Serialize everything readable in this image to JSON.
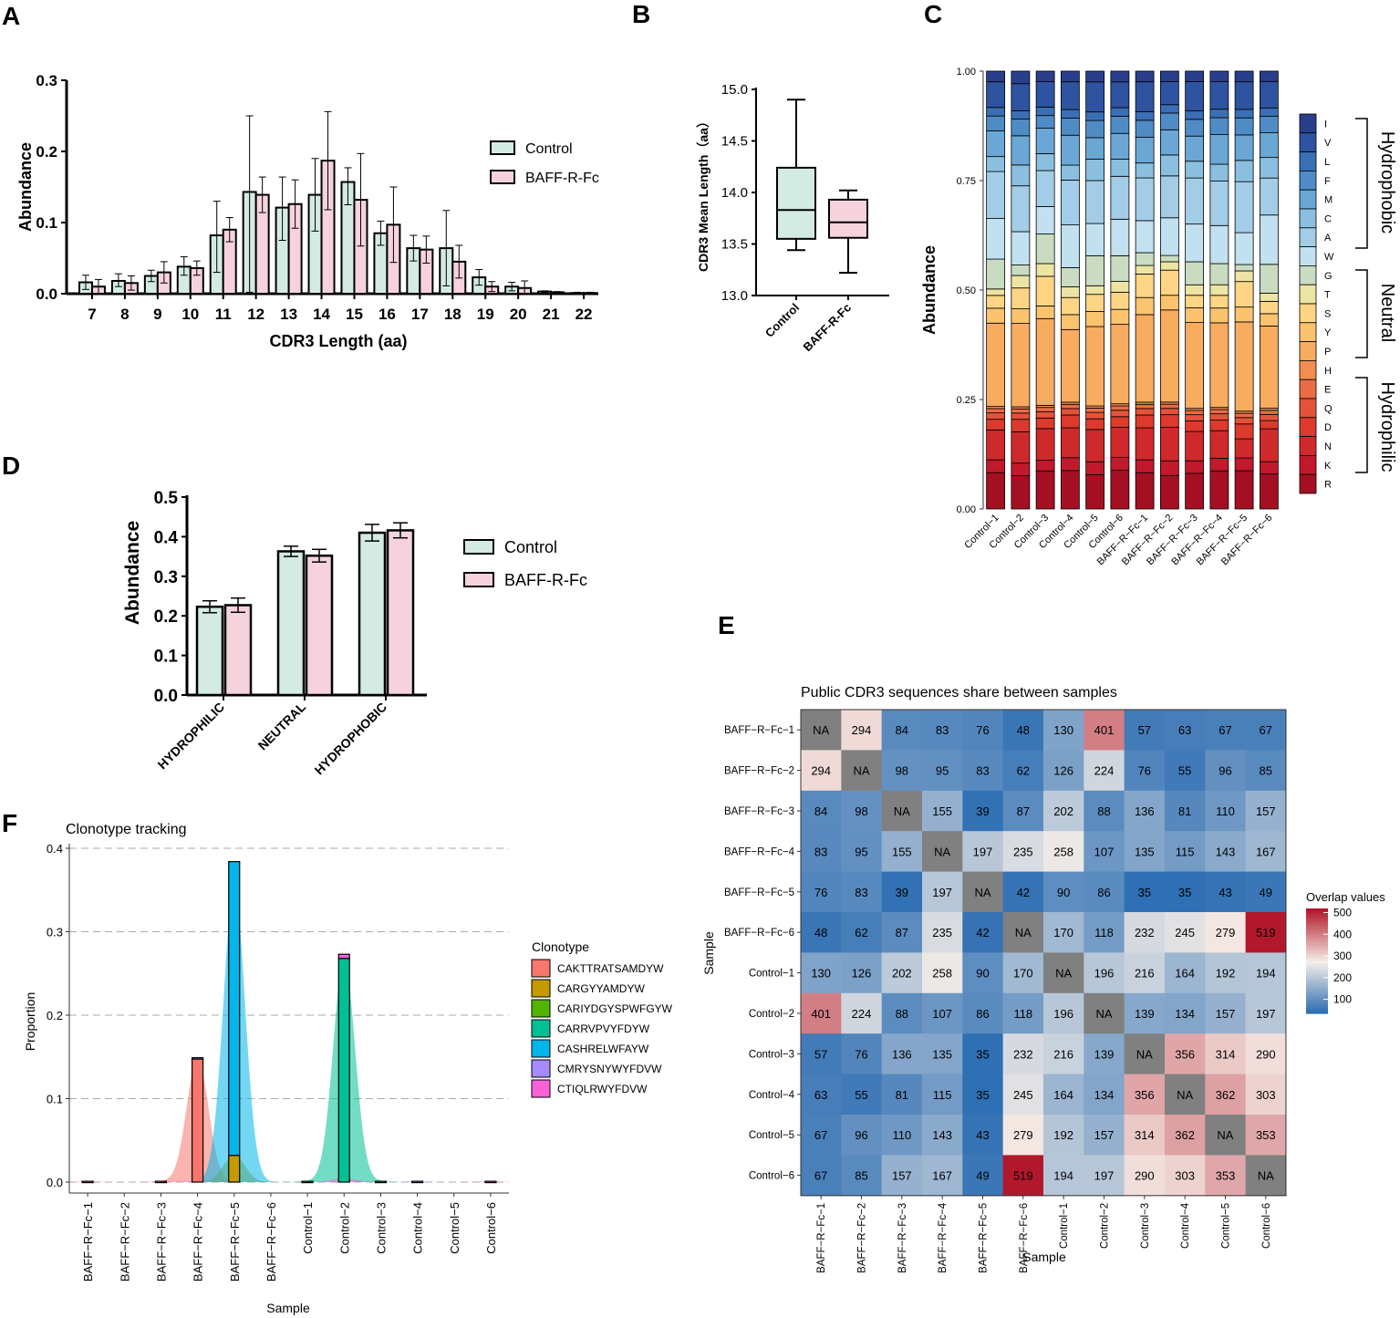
{
  "panel_labels": {
    "a": "A",
    "b": "B",
    "c": "C",
    "d": "D",
    "e": "E",
    "f": "F"
  },
  "colors": {
    "control": "#d3ebe3",
    "baff": "#f6d3dc",
    "heat_low": "#2f6fb3",
    "heat_mid": "#f6efe9",
    "heat_high": "#b2182b",
    "na": "#808080"
  },
  "chart_data": [
    {
      "id": "A",
      "type": "bar",
      "xlabel": "CDR3 Length (aa)",
      "ylabel": "Abundance",
      "ylim": [
        0,
        0.3
      ],
      "yticks": [
        "0.0",
        "0.1",
        "0.2",
        "0.3"
      ],
      "categories": [
        "7",
        "8",
        "9",
        "10",
        "11",
        "12",
        "13",
        "14",
        "15",
        "16",
        "17",
        "18",
        "19",
        "20",
        "21",
        "22"
      ],
      "series": [
        {
          "name": "Control",
          "values": [
            0.016,
            0.018,
            0.025,
            0.038,
            0.082,
            0.143,
            0.121,
            0.139,
            0.157,
            0.085,
            0.064,
            0.064,
            0.023,
            0.01,
            0.003,
            0.001
          ],
          "err_hi": [
            0.026,
            0.028,
            0.033,
            0.052,
            0.13,
            0.25,
            0.164,
            0.19,
            0.177,
            0.102,
            0.082,
            0.117,
            0.034,
            0.016,
            0.004,
            0.002
          ],
          "err_lo": [
            0.006,
            0.01,
            0.017,
            0.026,
            0.03,
            0.002,
            0.075,
            0.088,
            0.125,
            0.068,
            0.046,
            0.011,
            0.012,
            0.004,
            0.002,
            0.0
          ]
        },
        {
          "name": "BAFF-R-Fc",
          "values": [
            0.01,
            0.015,
            0.03,
            0.036,
            0.09,
            0.139,
            0.126,
            0.187,
            0.132,
            0.097,
            0.062,
            0.045,
            0.01,
            0.008,
            0.002,
            0.001
          ],
          "err_hi": [
            0.02,
            0.025,
            0.045,
            0.046,
            0.107,
            0.164,
            0.16,
            0.256,
            0.197,
            0.15,
            0.081,
            0.068,
            0.017,
            0.018,
            0.003,
            0.002
          ],
          "err_lo": [
            0.0,
            0.005,
            0.015,
            0.026,
            0.073,
            0.114,
            0.092,
            0.118,
            0.067,
            0.044,
            0.043,
            0.022,
            0.003,
            0.0,
            0.001,
            0.0
          ]
        }
      ]
    },
    {
      "id": "B",
      "type": "box",
      "ylabel": "CDR3 Mean Length（aa）",
      "ylim": [
        13.0,
        15.0
      ],
      "yticks": [
        "13.0",
        "13.5",
        "14.0",
        "14.5",
        "15.0"
      ],
      "categories": [
        "Control",
        "BAFF-R-Fc"
      ],
      "boxes": [
        {
          "min": 13.44,
          "q1": 13.55,
          "median": 13.83,
          "q3": 14.24,
          "max": 14.9
        },
        {
          "min": 13.22,
          "q1": 13.56,
          "median": 13.71,
          "q3": 13.93,
          "max": 14.02
        }
      ]
    },
    {
      "id": "C",
      "type": "stacked-bar",
      "ylabel": "Abundance",
      "ylim": [
        0,
        1
      ],
      "yticks": [
        "0.00",
        "0.25",
        "0.50",
        "0.75",
        "1.00"
      ],
      "categories": [
        "Control−1",
        "Control−2",
        "Control−3",
        "Control−4",
        "Control−5",
        "Control−6",
        "BAFF−R−Fc−1",
        "BAFF−R−Fc−2",
        "BAFF−R−Fc−3",
        "BAFF−R−Fc−4",
        "BAFF−R−Fc−5",
        "BAFF−R−Fc−6"
      ],
      "series": [
        {
          "name": "R",
          "color": "#a50f22",
          "values": [
            0.085,
            0.08,
            0.09,
            0.09,
            0.08,
            0.09,
            0.085,
            0.08,
            0.085,
            0.09,
            0.09,
            0.085
          ]
        },
        {
          "name": "K",
          "color": "#c2192c",
          "values": [
            0.03,
            0.03,
            0.025,
            0.03,
            0.03,
            0.03,
            0.03,
            0.035,
            0.03,
            0.03,
            0.03,
            0.03
          ]
        },
        {
          "name": "N",
          "color": "#cf2a2b",
          "values": [
            0.07,
            0.075,
            0.075,
            0.07,
            0.075,
            0.07,
            0.075,
            0.08,
            0.07,
            0.065,
            0.045,
            0.08
          ]
        },
        {
          "name": "D",
          "color": "#db3a2c",
          "values": [
            0.025,
            0.03,
            0.025,
            0.03,
            0.025,
            0.025,
            0.03,
            0.03,
            0.025,
            0.025,
            0.035,
            0.02
          ]
        },
        {
          "name": "Q",
          "color": "#e3533a",
          "values": [
            0.015,
            0.015,
            0.015,
            0.015,
            0.015,
            0.015,
            0.015,
            0.015,
            0.015,
            0.015,
            0.015,
            0.015
          ]
        },
        {
          "name": "E",
          "color": "#ea6c44",
          "values": [
            0.01,
            0.01,
            0.01,
            0.01,
            0.01,
            0.01,
            0.01,
            0.01,
            0.01,
            0.01,
            0.01,
            0.01
          ]
        },
        {
          "name": "H",
          "color": "#f28e52",
          "values": [
            0.005,
            0.005,
            0.005,
            0.005,
            0.005,
            0.005,
            0.005,
            0.005,
            0.005,
            0.005,
            0.005,
            0.005
          ]
        },
        {
          "name": "P",
          "color": "#f8ac5f",
          "values": [
            0.195,
            0.2,
            0.205,
            0.17,
            0.185,
            0.185,
            0.205,
            0.22,
            0.205,
            0.2,
            0.21,
            0.2
          ]
        },
        {
          "name": "Y",
          "color": "#fbc36e",
          "values": [
            0.035,
            0.035,
            0.03,
            0.035,
            0.035,
            0.035,
            0.04,
            0.035,
            0.035,
            0.035,
            0.035,
            0.03
          ]
        },
        {
          "name": "S",
          "color": "#fdd585",
          "values": [
            0.03,
            0.05,
            0.07,
            0.04,
            0.04,
            0.04,
            0.055,
            0.06,
            0.03,
            0.03,
            0.06,
            0.03
          ]
        },
        {
          "name": "T",
          "color": "#ece4a3",
          "values": [
            0.015,
            0.03,
            0.03,
            0.025,
            0.02,
            0.025,
            0.02,
            0.02,
            0.025,
            0.025,
            0.025,
            0.02
          ]
        },
        {
          "name": "G",
          "color": "#c9dcc2",
          "values": [
            0.07,
            0.025,
            0.07,
            0.045,
            0.07,
            0.06,
            0.03,
            0.015,
            0.055,
            0.05,
            0.015,
            0.07
          ]
        },
        {
          "name": "W",
          "color": "#c2e1f0",
          "values": [
            0.095,
            0.08,
            0.065,
            0.1,
            0.075,
            0.085,
            0.075,
            0.09,
            0.09,
            0.09,
            0.075,
            0.12
          ]
        },
        {
          "name": "A",
          "color": "#a3cde6",
          "values": [
            0.11,
            0.11,
            0.085,
            0.105,
            0.1,
            0.1,
            0.1,
            0.1,
            0.11,
            0.105,
            0.12,
            0.09
          ]
        },
        {
          "name": "C",
          "color": "#8bbfdf",
          "values": [
            0.035,
            0.05,
            0.04,
            0.035,
            0.05,
            0.04,
            0.035,
            0.05,
            0.04,
            0.04,
            0.05,
            0.05
          ]
        },
        {
          "name": "M",
          "color": "#6aa7d4",
          "values": [
            0.06,
            0.07,
            0.06,
            0.07,
            0.05,
            0.06,
            0.06,
            0.06,
            0.06,
            0.07,
            0.06,
            0.06
          ]
        },
        {
          "name": "F",
          "color": "#4f8cc5",
          "values": [
            0.035,
            0.04,
            0.03,
            0.04,
            0.04,
            0.04,
            0.04,
            0.04,
            0.04,
            0.04,
            0.04,
            0.04
          ]
        },
        {
          "name": "L",
          "color": "#3a6fb5",
          "values": [
            0.02,
            0.02,
            0.02,
            0.02,
            0.02,
            0.02,
            0.02,
            0.02,
            0.02,
            0.02,
            0.02,
            0.02
          ]
        },
        {
          "name": "V",
          "color": "#2e53a0",
          "values": [
            0.06,
            0.065,
            0.06,
            0.065,
            0.07,
            0.06,
            0.07,
            0.055,
            0.07,
            0.065,
            0.065,
            0.065
          ]
        },
        {
          "name": "I",
          "color": "#2a3f8c",
          "values": [
            0.025,
            0.03,
            0.025,
            0.025,
            0.025,
            0.025,
            0.025,
            0.025,
            0.025,
            0.025,
            0.025,
            0.025
          ]
        }
      ],
      "groups": [
        "Hydrophobic",
        "Neutral",
        "Hydrophilic"
      ]
    },
    {
      "id": "D",
      "type": "bar",
      "ylabel": "Abundance",
      "ylim": [
        0,
        0.5
      ],
      "yticks": [
        "0.0",
        "0.1",
        "0.2",
        "0.3",
        "0.4",
        "0.5"
      ],
      "categories": [
        "HYDROPHILIC",
        "NEUTRAL",
        "HYDROPHOBIC"
      ],
      "series": [
        {
          "name": "Control",
          "values": [
            0.223,
            0.363,
            0.41
          ],
          "err": [
            0.015,
            0.013,
            0.021
          ]
        },
        {
          "name": "BAFF-R-Fc",
          "values": [
            0.227,
            0.352,
            0.416
          ],
          "err": [
            0.018,
            0.016,
            0.019
          ]
        }
      ]
    },
    {
      "id": "E",
      "type": "heatmap",
      "title": "Public CDR3 sequences share between samples",
      "xlabel": "Sample",
      "ylabel": "Sample",
      "legend_title": "Overlap values",
      "legend_ticks": [
        "100",
        "200",
        "300",
        "400",
        "500"
      ],
      "value_range": [
        35,
        519
      ],
      "labels": [
        "BAFF−R−Fc−1",
        "BAFF−R−Fc−2",
        "BAFF−R−Fc−3",
        "BAFF−R−Fc−4",
        "BAFF−R−Fc−5",
        "BAFF−R−Fc−6",
        "Control−1",
        "Control−2",
        "Control−3",
        "Control−4",
        "Control−5",
        "Control−6"
      ],
      "matrix": [
        [
          "NA",
          294,
          84,
          83,
          76,
          48,
          130,
          401,
          57,
          63,
          67,
          67
        ],
        [
          294,
          "NA",
          98,
          95,
          83,
          62,
          126,
          224,
          76,
          55,
          96,
          85
        ],
        [
          84,
          98,
          "NA",
          155,
          39,
          87,
          202,
          88,
          136,
          81,
          110,
          157
        ],
        [
          83,
          95,
          155,
          "NA",
          197,
          235,
          258,
          107,
          135,
          115,
          143,
          167
        ],
        [
          76,
          83,
          39,
          197,
          "NA",
          42,
          90,
          86,
          35,
          35,
          43,
          49
        ],
        [
          48,
          62,
          87,
          235,
          42,
          "NA",
          170,
          118,
          232,
          245,
          279,
          519
        ],
        [
          130,
          126,
          202,
          258,
          90,
          170,
          "NA",
          196,
          216,
          164,
          192,
          194
        ],
        [
          401,
          224,
          88,
          107,
          86,
          118,
          196,
          "NA",
          139,
          134,
          157,
          197
        ],
        [
          57,
          76,
          136,
          135,
          35,
          232,
          216,
          139,
          "NA",
          356,
          314,
          290
        ],
        [
          63,
          55,
          81,
          115,
          35,
          245,
          164,
          134,
          356,
          "NA",
          362,
          303
        ],
        [
          67,
          96,
          110,
          143,
          43,
          279,
          192,
          157,
          314,
          362,
          "NA",
          353
        ],
        [
          67,
          85,
          157,
          167,
          49,
          519,
          194,
          197,
          290,
          303,
          353,
          "NA"
        ]
      ]
    },
    {
      "id": "F",
      "type": "area",
      "title": "Clonotype tracking",
      "xlabel": "Sample",
      "ylabel": "Proportion",
      "legend_title": "Clonotype",
      "ylim": [
        0,
        0.4
      ],
      "yticks": [
        "0.0",
        "0.1",
        "0.2",
        "0.3",
        "0.4"
      ],
      "categories": [
        "BAFF−R−Fc−1",
        "BAFF−R−Fc−2",
        "BAFF−R−Fc−3",
        "BAFF−R−Fc−4",
        "BAFF−R−Fc−5",
        "BAFF−R−Fc−6",
        "Control−1",
        "Control−2",
        "Control−3",
        "Control−4",
        "Control−5",
        "Control−6"
      ],
      "series": [
        {
          "name": "CAKTTRATSAMDYW",
          "color": "#f8766d",
          "values": [
            0.001,
            0,
            0.001,
            0.148,
            0,
            0,
            0,
            0,
            0,
            0,
            0,
            0
          ]
        },
        {
          "name": "CARGYYAMDYW",
          "color": "#c49a00",
          "values": [
            0,
            0,
            0,
            0,
            0.032,
            0,
            0,
            0,
            0,
            0,
            0,
            0
          ]
        },
        {
          "name": "CARIYDGYSPWFGYW",
          "color": "#53b400",
          "values": [
            0,
            0,
            0,
            0,
            0,
            0,
            0,
            0,
            0,
            0,
            0,
            0
          ]
        },
        {
          "name": "CARRVPVYFDYW",
          "color": "#00c094",
          "values": [
            0,
            0,
            0,
            0,
            0,
            0,
            0.001,
            0.268,
            0.001,
            0,
            0,
            0
          ]
        },
        {
          "name": "CASHRELWFAYW",
          "color": "#00b6eb",
          "values": [
            0,
            0,
            0,
            0,
            0.352,
            0,
            0,
            0,
            0,
            0,
            0,
            0
          ]
        },
        {
          "name": "CMRYSNYWYFDVW",
          "color": "#a58aff",
          "values": [
            0,
            0,
            0,
            0.001,
            0,
            0,
            0,
            0,
            0,
            0.001,
            0,
            0
          ]
        },
        {
          "name": "CTIQLRWYFDVW",
          "color": "#fb61d7",
          "values": [
            0,
            0,
            0,
            0,
            0,
            0,
            0,
            0.005,
            0,
            0,
            0,
            0.001
          ]
        }
      ]
    }
  ]
}
